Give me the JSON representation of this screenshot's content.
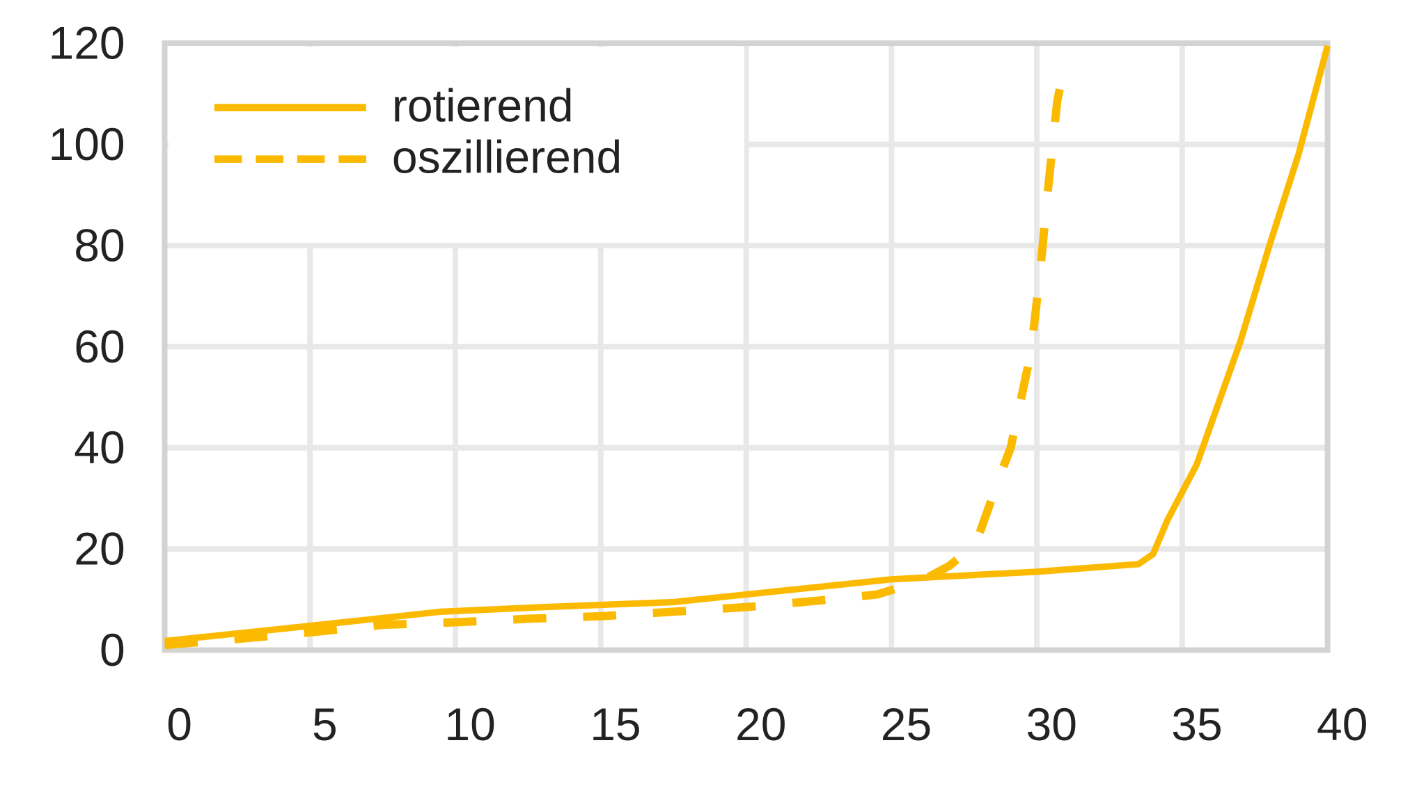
{
  "chart_data": {
    "type": "line",
    "title": "",
    "xlabel": "",
    "ylabel": "",
    "xlim": [
      0,
      40
    ],
    "ylim": [
      0,
      120
    ],
    "xticks": [
      0,
      5,
      10,
      15,
      20,
      25,
      30,
      35,
      40
    ],
    "yticks": [
      0,
      20,
      40,
      60,
      80,
      100,
      120
    ],
    "grid": true,
    "legend_position": "top-left",
    "series": [
      {
        "name": "rotierend",
        "style": "solid",
        "color": "#FBBA00",
        "x": [
          0,
          5,
          9.5,
          13,
          17.5,
          20,
          25,
          30,
          33.5,
          34,
          34.5,
          35.5,
          37,
          38,
          39,
          40
        ],
        "y": [
          1.8,
          4.8,
          7.6,
          8.5,
          9.5,
          11,
          14,
          15.5,
          17,
          19,
          25.8,
          36.7,
          61,
          80,
          98,
          119.5
        ]
      },
      {
        "name": "oszillierend",
        "style": "dashed",
        "color": "#FBBA00",
        "x": [
          0,
          2.5,
          5,
          7.5,
          10,
          12.5,
          15,
          17.5,
          20,
          22.5,
          24.5,
          26,
          27,
          27.9,
          28.7,
          29.1,
          29.8,
          30.1,
          30.4,
          30.7,
          31
        ],
        "y": [
          1.0,
          2.2,
          3.5,
          5.0,
          5.5,
          6.2,
          6.7,
          7.6,
          8.5,
          9.8,
          11,
          13.6,
          16.7,
          21,
          34,
          40,
          59,
          74,
          92,
          108.5,
          117
        ]
      }
    ]
  }
}
